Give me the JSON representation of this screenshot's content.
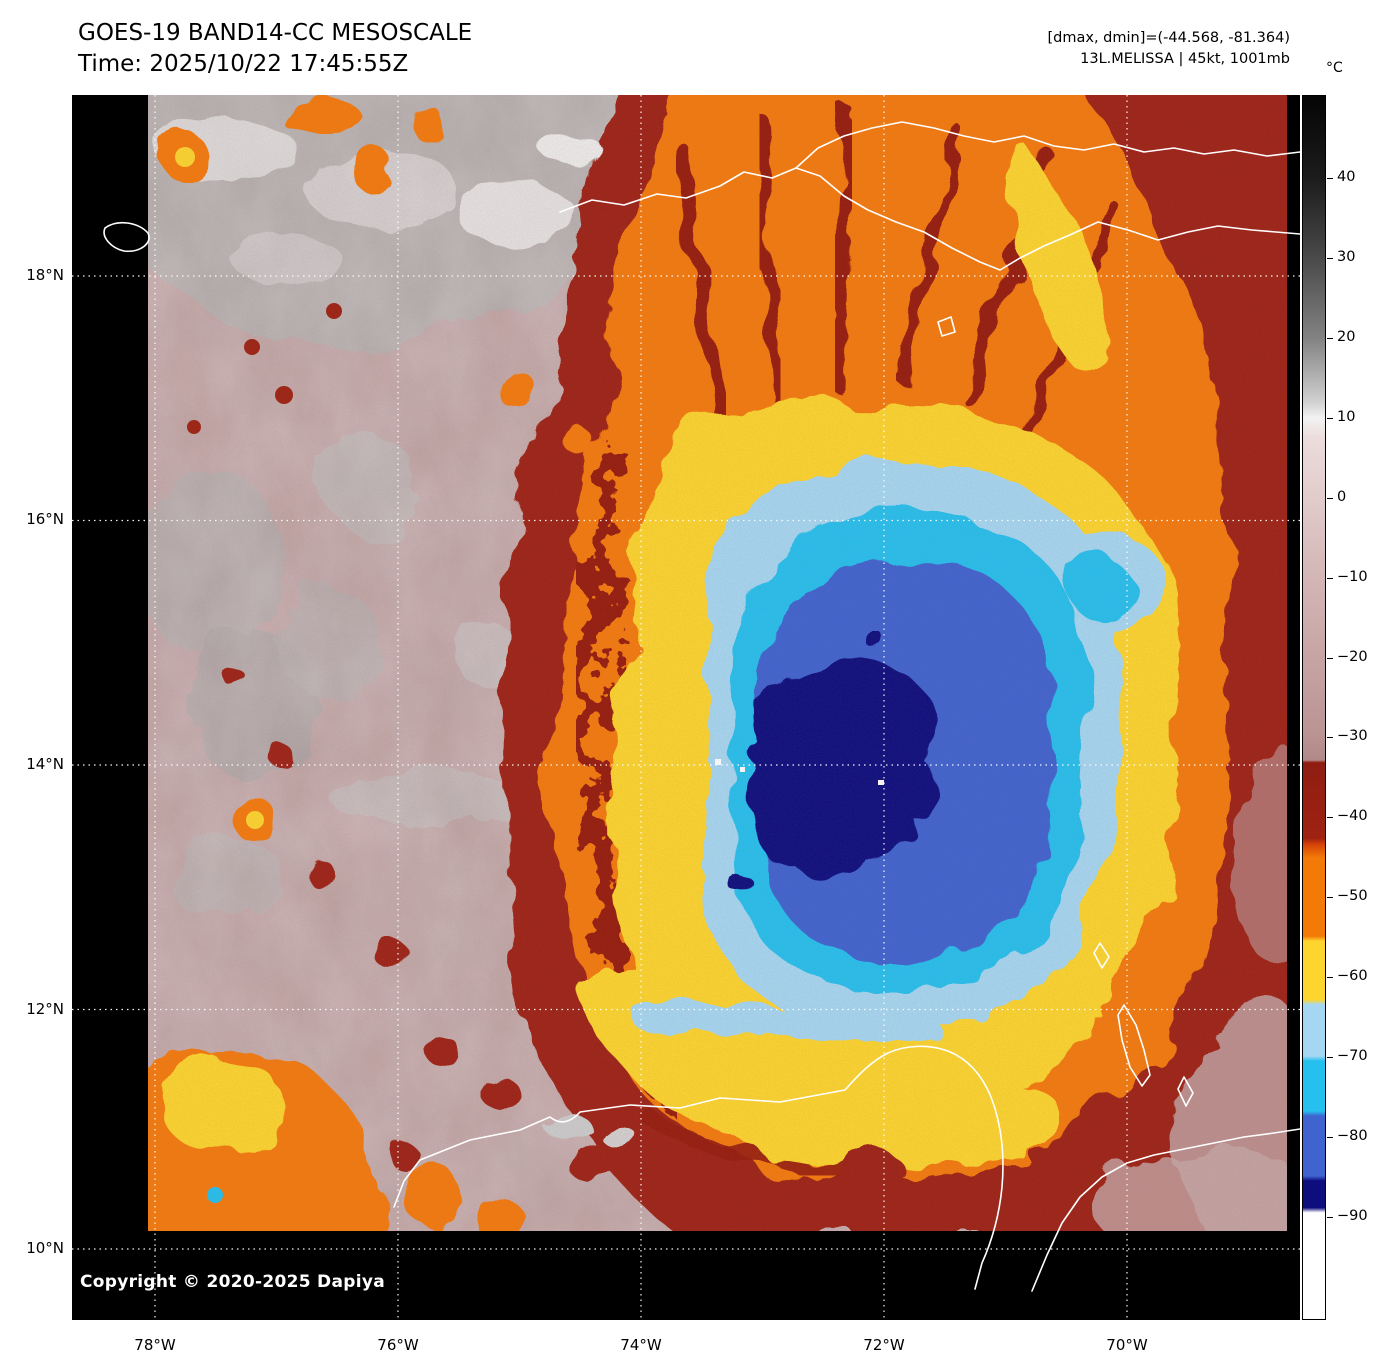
{
  "header": {
    "title": "GOES-19 BAND14-CC MESOSCALE",
    "time": "Time: 2025/10/22 17:45:55Z",
    "range": "[dmax, dmin]=(-44.568, -81.364)",
    "storm": "13L.MELISSA | 45kt, 1001mb"
  },
  "colorbar": {
    "unit": "°C",
    "ticks": [
      40,
      30,
      20,
      10,
      0,
      -10,
      -20,
      -30,
      -40,
      -50,
      -60,
      -70,
      -80,
      -90
    ]
  },
  "map": {
    "lat_labels": [
      "18°N",
      "16°N",
      "14°N",
      "12°N",
      "10°N"
    ],
    "lon_labels": [
      "78°W",
      "76°W",
      "74°W",
      "72°W",
      "70°W"
    ],
    "copyright": "Copyright © 2020-2025 Dapiya"
  },
  "palette": {
    "background_warm_pink": "#c2a2a2",
    "cloud_gray": "#b2aaaa",
    "dark_red_minus40": "#9e2212",
    "orange_minus50": "#f47a08",
    "yellow_minus60": "#fdd52e",
    "light_blue_minus65": "#a6d7f2",
    "cyan_minus70": "#25c0ee",
    "royal_blue_minus80": "#3f64d0",
    "navy_minus85": "#0d0d7e"
  },
  "chart_data": {
    "type": "heatmap",
    "title": "GOES-19 BAND14-CC MESOSCALE",
    "time_utc": "2025/10/22 17:45:55Z",
    "x_axis": {
      "labels": [
        "78°W",
        "76°W",
        "74°W",
        "72°W",
        "70°W"
      ]
    },
    "y_axis": {
      "labels": [
        "18°N",
        "16°N",
        "14°N",
        "12°N",
        "10°N"
      ]
    },
    "colorbar": {
      "unit": "°C",
      "ticks": [
        40,
        30,
        20,
        10,
        0,
        -10,
        -20,
        -30,
        -40,
        -50,
        -60,
        -70,
        -80,
        -90
      ]
    },
    "dmax_c": -44.568,
    "dmin_c": -81.364,
    "storm": {
      "designation": "13L",
      "name": "MELISSA",
      "wind_kt": 45,
      "pressure_mb": 1001
    },
    "scene": "Infrared brightness-temperature image of Hurricane Melissa: cold central dense overcast (navy/blue, below -80 C) near 13.9N 73W ringed by cyan, light blue, yellow (-60 C), orange (-50 C) and dark red (-40 C) bands; warm pink/gray cloud field to the west; Hispaniola coastline to the north, Colombian/Venezuelan coast to the south"
  }
}
